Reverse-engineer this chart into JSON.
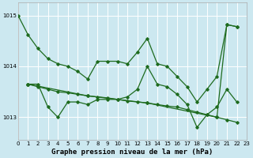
{
  "title": "Graphe pression niveau de la mer (hPa)",
  "bg_color": "#cce8f0",
  "grid_color": "#ffffff",
  "line_color": "#1e6b1e",
  "s1x": [
    0,
    1,
    2,
    3,
    4,
    5,
    6,
    7,
    8,
    9,
    10,
    11,
    12,
    13,
    14,
    15,
    16,
    17,
    18,
    19,
    20,
    21,
    22
  ],
  "s1y": [
    1015.0,
    1014.62,
    1014.35,
    1014.15,
    1014.05,
    1014.0,
    1013.9,
    1013.75,
    1014.1,
    1014.1,
    1014.1,
    1014.05,
    1014.28,
    1014.55,
    1014.05,
    1014.0,
    1013.8,
    1013.6,
    1013.3,
    1013.55,
    1013.8,
    1014.82,
    1014.78
  ],
  "s2x": [
    1,
    2,
    3,
    4,
    5,
    6,
    7,
    8,
    9,
    10,
    11,
    12,
    13,
    14,
    15,
    16,
    17,
    18,
    19,
    20,
    21,
    22
  ],
  "s2y": [
    1013.65,
    1013.6,
    1013.55,
    1013.5,
    1013.48,
    1013.45,
    1013.42,
    1013.4,
    1013.38,
    1013.35,
    1013.32,
    1013.3,
    1013.28,
    1013.25,
    1013.22,
    1013.2,
    1013.15,
    1013.1,
    1013.05,
    1013.0,
    1012.95,
    1012.9
  ],
  "s3x": [
    1,
    2,
    3,
    4,
    5,
    6,
    7,
    8,
    9,
    10,
    11,
    12,
    13,
    14,
    15,
    16,
    17,
    18,
    19,
    20,
    21,
    22
  ],
  "s3y": [
    1013.65,
    1013.65,
    1013.2,
    1013.0,
    1013.3,
    1013.3,
    1013.25,
    1013.35,
    1013.35,
    1013.35,
    1013.4,
    1013.55,
    1014.0,
    1013.65,
    1013.6,
    1013.45,
    1013.25,
    1012.8,
    1013.05,
    1013.2,
    1013.55,
    1013.3
  ],
  "s4x": [
    1,
    7,
    13,
    20,
    21,
    22
  ],
  "s4y": [
    1013.65,
    1013.42,
    1013.28,
    1013.0,
    1014.82,
    1014.78
  ],
  "xlim": [
    0,
    23
  ],
  "ylim": [
    1012.55,
    1015.25
  ],
  "yticks": [
    1013,
    1014,
    1015
  ],
  "xticks": [
    0,
    1,
    2,
    3,
    4,
    5,
    6,
    7,
    8,
    9,
    10,
    11,
    12,
    13,
    14,
    15,
    16,
    17,
    18,
    19,
    20,
    21,
    22,
    23
  ],
  "tick_fontsize": 5.0,
  "label_fontsize": 6.5,
  "marker": "D",
  "marker_size": 1.8,
  "linewidth": 0.9
}
